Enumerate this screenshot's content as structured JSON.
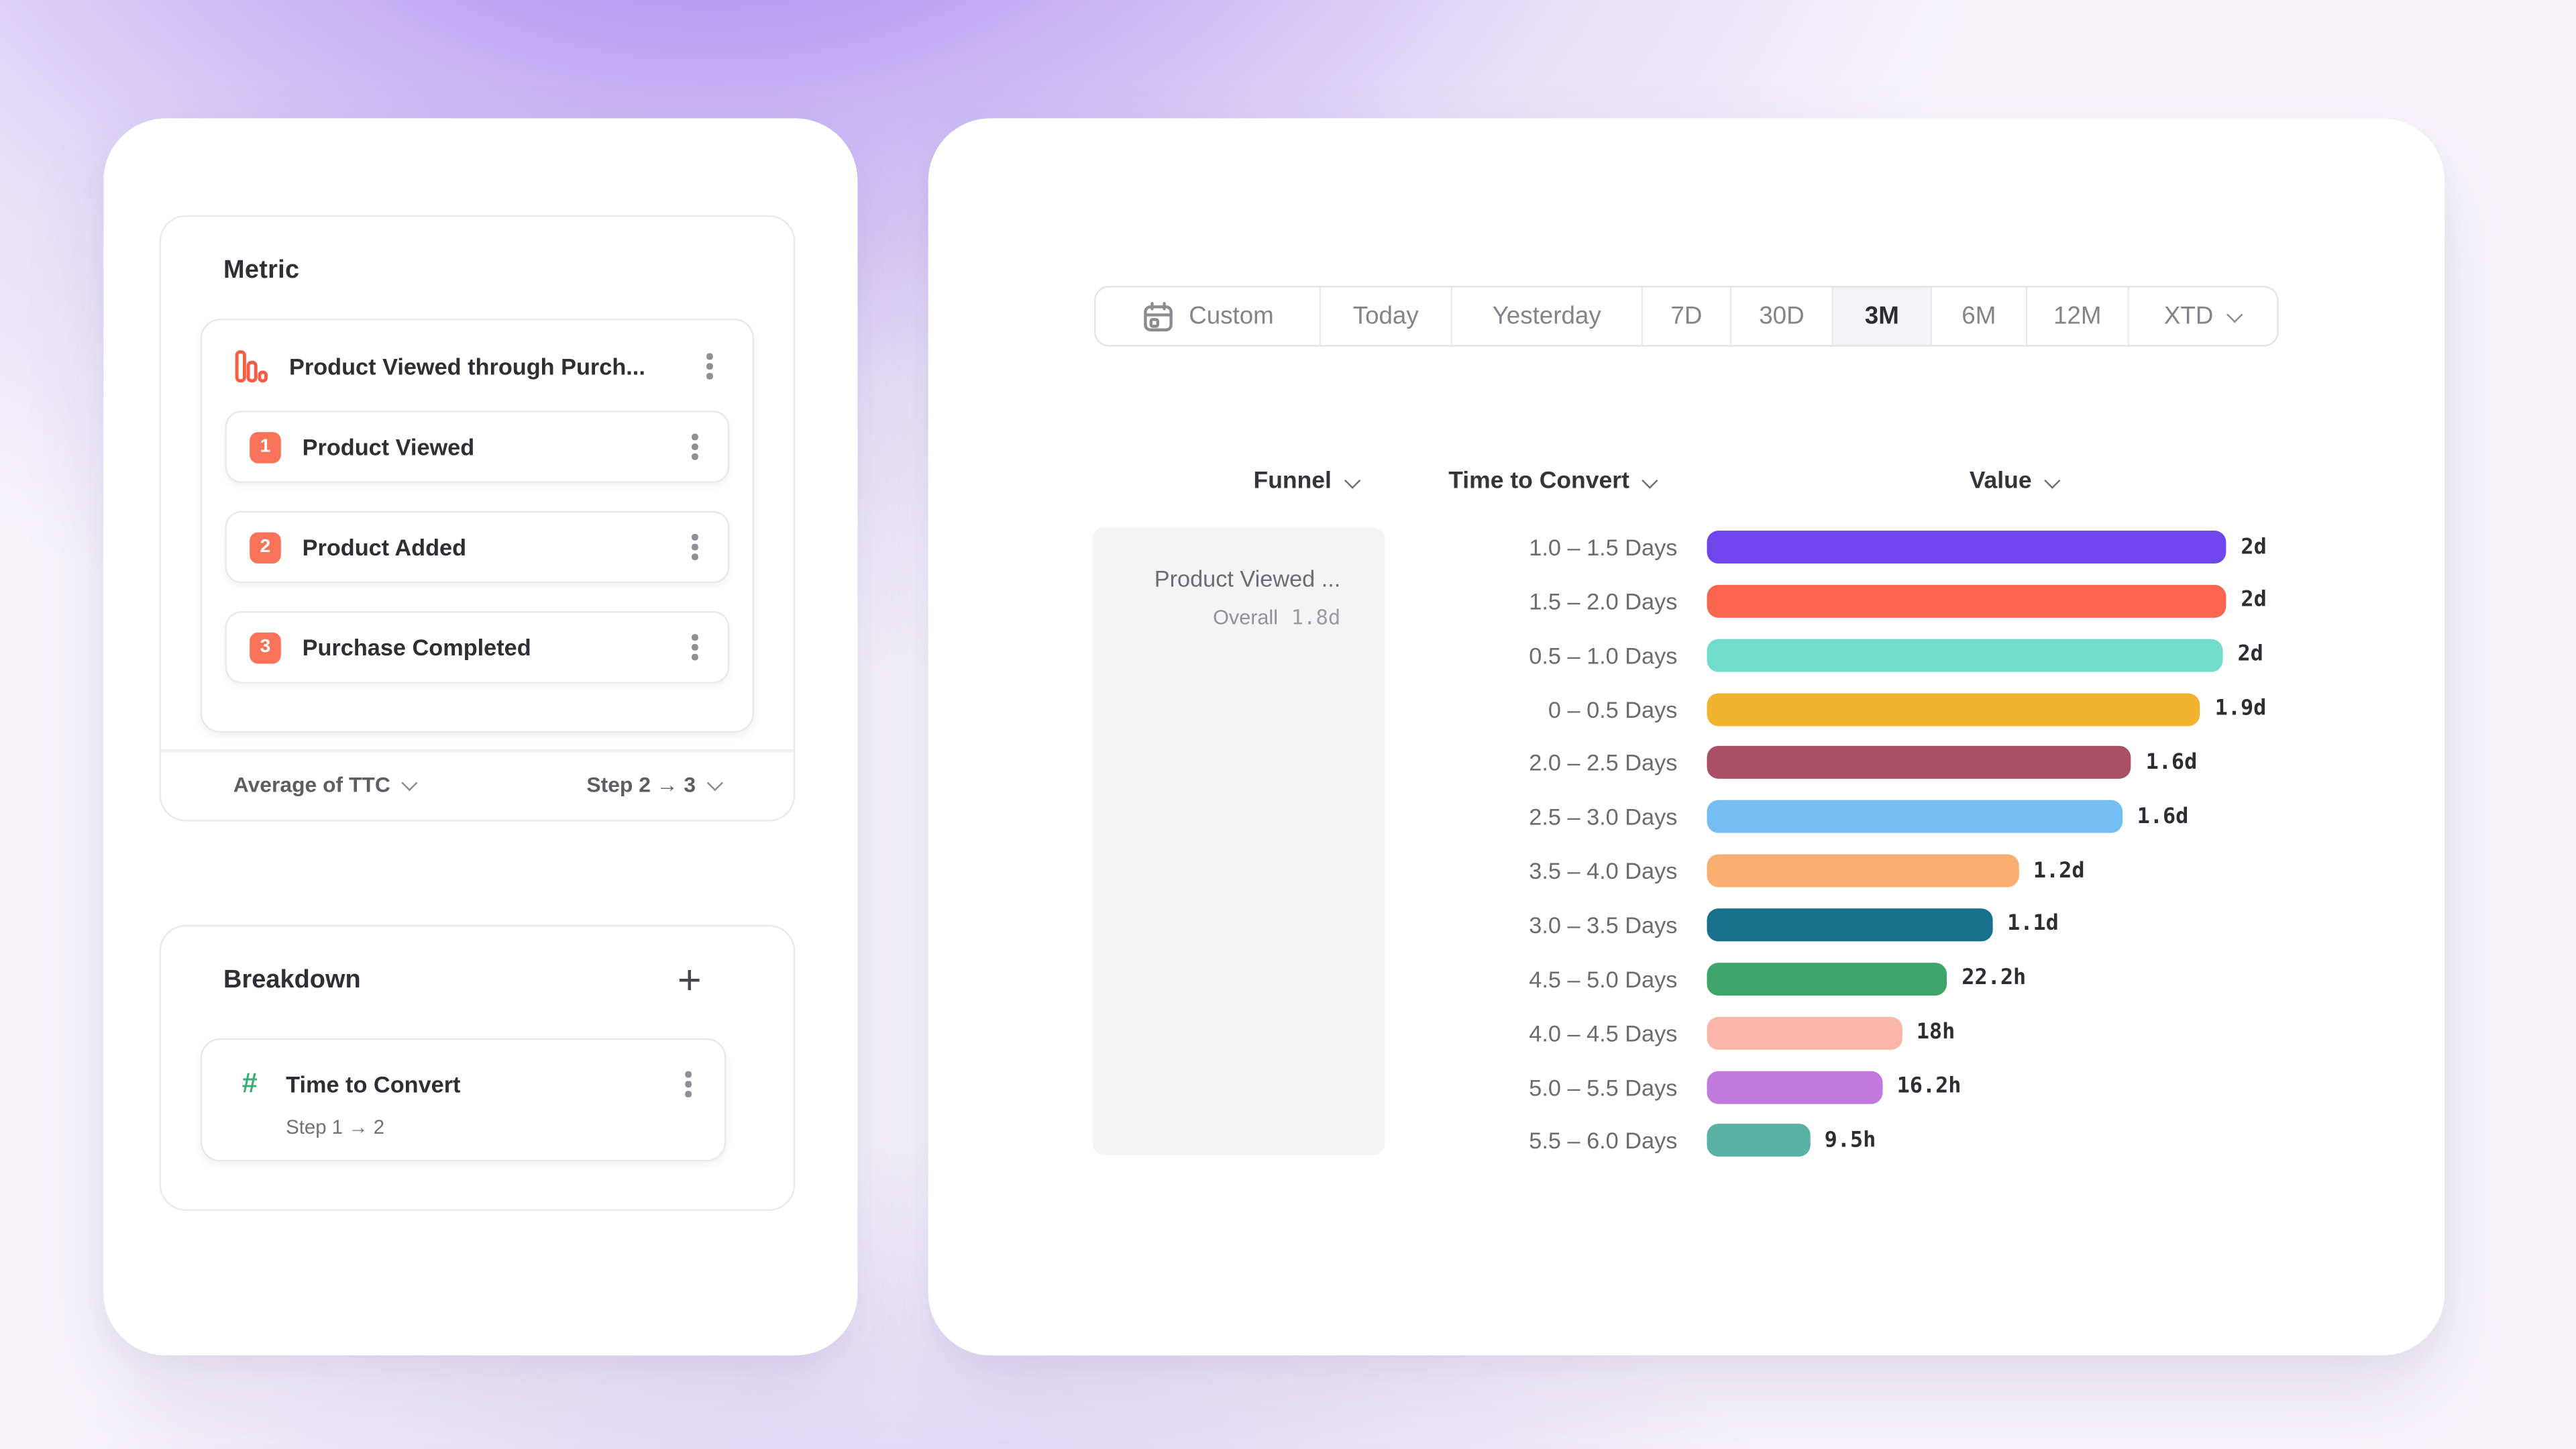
{
  "metric_panel": {
    "title": "Metric",
    "metric": {
      "name": "Product Viewed through Purch...",
      "steps": [
        {
          "num": "1",
          "label": "Product Viewed"
        },
        {
          "num": "2",
          "label": "Product Added"
        },
        {
          "num": "3",
          "label": "Purchase Completed"
        }
      ],
      "aggregation": "Average of TTC",
      "step_range": "Step 2 → 3"
    }
  },
  "breakdown_panel": {
    "title": "Breakdown",
    "add_button": "+",
    "item": {
      "label": "Time to Convert",
      "detail": "Step 1 → 2"
    }
  },
  "date_picker": {
    "options": [
      "Custom",
      "Today",
      "Yesterday",
      "7D",
      "30D",
      "3M",
      "6M",
      "12M",
      "XTD"
    ],
    "selected": "3M"
  },
  "table": {
    "headers": {
      "funnel": "Funnel",
      "breakdown": "Time to Convert",
      "value": "Value"
    },
    "funnel_row": {
      "name": "Product Viewed ...",
      "overall_label": "Overall",
      "overall_value": "1.8d"
    }
  },
  "chart_data": {
    "type": "bar",
    "orientation": "horizontal",
    "series_label": "Time to Convert",
    "value_label": "Value",
    "max_hours": 48,
    "categories": [
      "1.0 – 1.5 Days",
      "1.5 – 2.0 Days",
      "0.5 – 1.0 Days",
      "0 – 0.5 Days",
      "2.0 – 2.5 Days",
      "2.5 – 3.0 Days",
      "3.5 – 4.0 Days",
      "3.0 – 3.5 Days",
      "4.5 – 5.0 Days",
      "4.0 – 4.5 Days",
      "5.0 – 5.5 Days",
      "5.5 – 6.0 Days"
    ],
    "values": [
      {
        "display": "2d",
        "hours": 48
      },
      {
        "display": "2d",
        "hours": 48
      },
      {
        "display": "2d",
        "hours": 47.7
      },
      {
        "display": "1.9d",
        "hours": 45.6
      },
      {
        "display": "1.6d",
        "hours": 39.2
      },
      {
        "display": "1.6d",
        "hours": 38.4
      },
      {
        "display": "1.2d",
        "hours": 28.8
      },
      {
        "display": "1.1d",
        "hours": 26.4
      },
      {
        "display": "22.2h",
        "hours": 22.2
      },
      {
        "display": "18h",
        "hours": 18
      },
      {
        "display": "16.2h",
        "hours": 16.2
      },
      {
        "display": "9.5h",
        "hours": 9.5
      }
    ],
    "bar_colors": [
      "#6e46ec",
      "#f9654e",
      "#71dccc",
      "#f2b32f",
      "#a94f66",
      "#75bef4",
      "#faae70",
      "#17708c",
      "#3fa56a",
      "#fbb6ab",
      "#c179de",
      "#58b1a3"
    ]
  },
  "accent_colors": {
    "step_badge": "#f8735a",
    "funnel_icon": "#f75c45",
    "hash_icon": "#3bac72",
    "selected_segment_bg": "#f4f4f6",
    "funnel_cell_bg": "#f4f4f5"
  }
}
